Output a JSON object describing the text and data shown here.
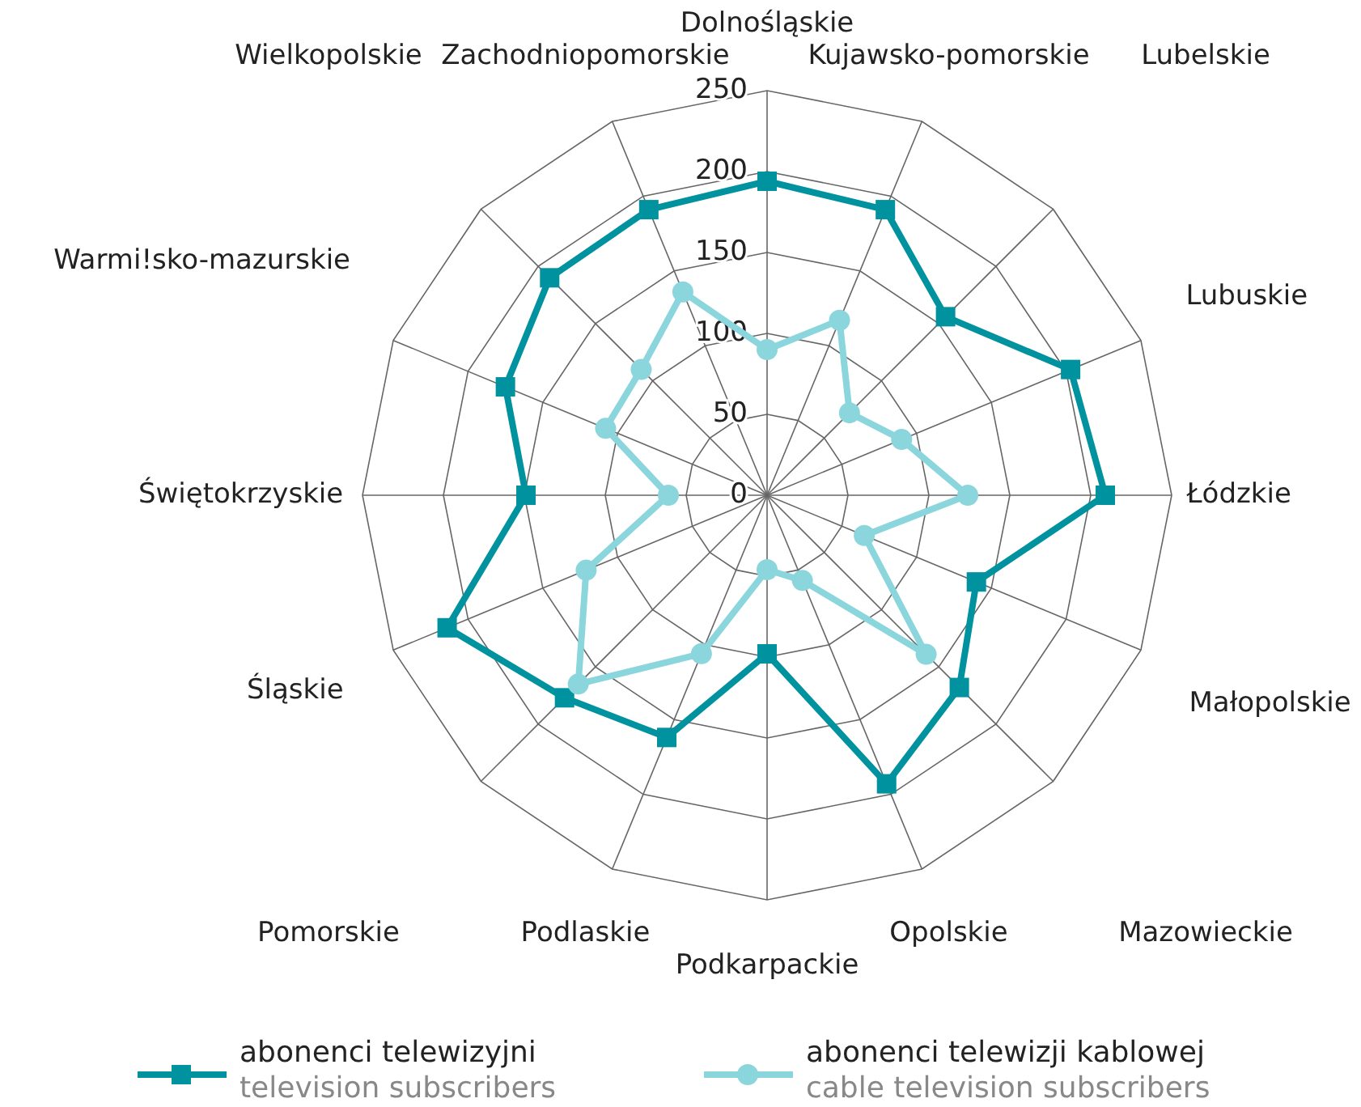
{
  "chart_data": {
    "type": "radar",
    "categories": [
      "Dolnośląskie",
      "Kujawsko-pomorskie",
      "Lubelskie",
      "Lubuskie",
      "Łódzkie",
      "Małopolskie",
      "Mazowieckie",
      "Opolskie",
      "Podkarpackie",
      "Podlaskie",
      "Pomorskie",
      "Śląskie",
      "Świętokrzyskie",
      "Warmi!sko-mazurskie",
      "Wielkopolskie",
      "Zachodniopomorskie"
    ],
    "series": [
      {
        "name": "abonenci telewizyjni\ntelevision subscribers",
        "color": "#00929f",
        "marker": "square",
        "values": [
          194,
          191,
          156,
          203,
          209,
          140,
          168,
          193,
          98,
          162,
          177,
          214,
          149,
          175,
          190,
          191
        ]
      },
      {
        "name": "abonenci telewizji kablowej\ncable television subscribers",
        "color": "#8ad6dc",
        "marker": "circle",
        "values": [
          90,
          117,
          72,
          90,
          124,
          65,
          139,
          57,
          46,
          106,
          165,
          121,
          61,
          108,
          110,
          136
        ]
      }
    ],
    "ylim": [
      0,
      250
    ],
    "yticks": [
      0,
      50,
      100,
      150,
      200,
      250
    ],
    "grid": true,
    "legend": "bottom",
    "line_style": "solid"
  }
}
